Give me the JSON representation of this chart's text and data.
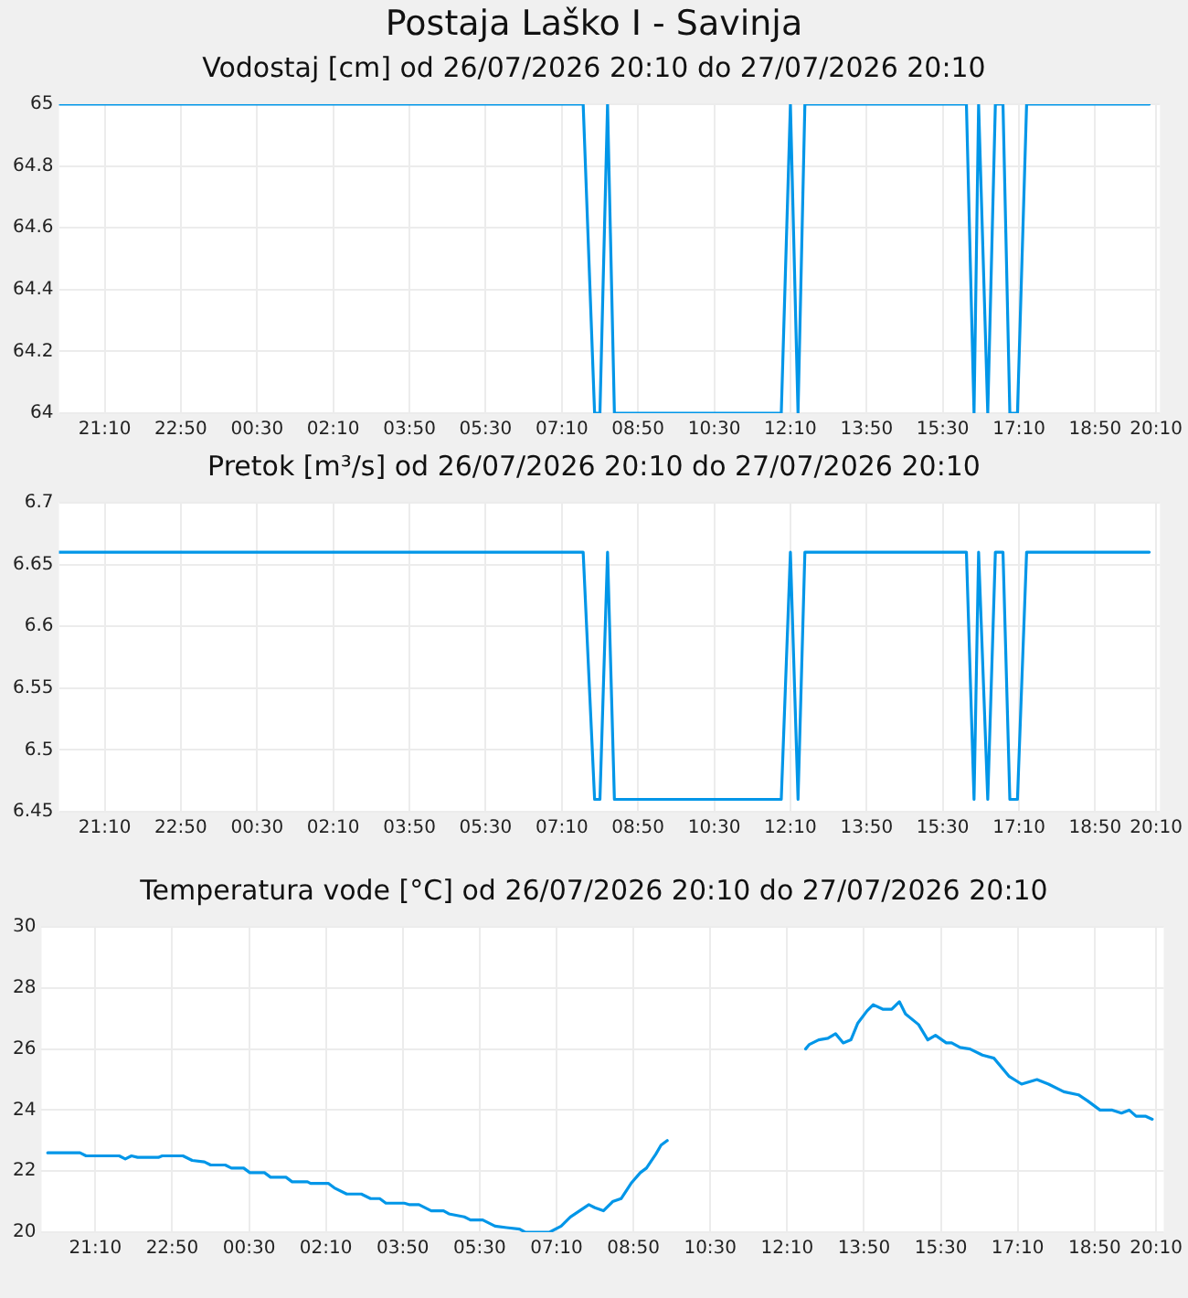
{
  "chart_data": [
    {
      "type": "line",
      "title": "Postaja Laško I - Savinja",
      "subtitle": "Vodostaj [cm] od 26/07/2026 20:10 do 27/07/2026 20:10",
      "grid": true,
      "legend": false,
      "marker": "none",
      "line_style": "solid",
      "xlim": [
        "2026-07-26T20:10",
        "2026-07-27T20:15"
      ],
      "xticks": [
        {
          "value": "2026-07-26T21:10",
          "label": "21:10"
        },
        {
          "value": "2026-07-26T22:50",
          "label": "22:50"
        },
        {
          "value": "2026-07-27T00:30",
          "label": "00:30"
        },
        {
          "value": "2026-07-27T02:10",
          "label": "02:10"
        },
        {
          "value": "2026-07-27T03:50",
          "label": "03:50"
        },
        {
          "value": "2026-07-27T05:30",
          "label": "05:30"
        },
        {
          "value": "2026-07-27T07:10",
          "label": "07:10"
        },
        {
          "value": "2026-07-27T08:50",
          "label": "08:50"
        },
        {
          "value": "2026-07-27T10:30",
          "label": "10:30"
        },
        {
          "value": "2026-07-27T12:10",
          "label": "12:10"
        },
        {
          "value": "2026-07-27T13:50",
          "label": "13:50"
        },
        {
          "value": "2026-07-27T15:30",
          "label": "15:30"
        },
        {
          "value": "2026-07-27T17:10",
          "label": "17:10"
        },
        {
          "value": "2026-07-27T18:50",
          "label": "18:50"
        },
        {
          "value": "2026-07-27T20:10",
          "label": "20:10"
        }
      ],
      "ylim": [
        64,
        65
      ],
      "yticks": [
        64,
        64.2,
        64.4,
        64.6,
        64.8,
        65
      ],
      "x": [
        "2026-07-26T20:10",
        "2026-07-27T07:38",
        "2026-07-27T07:53",
        "2026-07-27T08:00",
        "2026-07-27T08:10",
        "2026-07-27T08:19",
        "2026-07-27T11:58",
        "2026-07-27T12:10",
        "2026-07-27T12:20",
        "2026-07-27T12:29",
        "2026-07-27T16:01",
        "2026-07-27T16:11",
        "2026-07-27T16:17",
        "2026-07-27T16:29",
        "2026-07-27T16:39",
        "2026-07-27T16:49",
        "2026-07-27T16:58",
        "2026-07-27T17:08",
        "2026-07-27T17:20",
        "2026-07-27T20:01"
      ],
      "series": [
        {
          "color": "#0096e8",
          "values": [
            65,
            65,
            64,
            64,
            65,
            64,
            64,
            65,
            64,
            65,
            65,
            64,
            65,
            64,
            65,
            65,
            64,
            64,
            65,
            65
          ]
        }
      ]
    },
    {
      "type": "line",
      "title": "Pretok [m³/s] od 26/07/2026 20:10 do 27/07/2026 20:10",
      "grid": true,
      "legend": false,
      "marker": "none",
      "line_style": "solid",
      "xlim": [
        "2026-07-26T20:10",
        "2026-07-27T20:15"
      ],
      "xticks": [
        {
          "value": "2026-07-26T21:10",
          "label": "21:10"
        },
        {
          "value": "2026-07-26T22:50",
          "label": "22:50"
        },
        {
          "value": "2026-07-27T00:30",
          "label": "00:30"
        },
        {
          "value": "2026-07-27T02:10",
          "label": "02:10"
        },
        {
          "value": "2026-07-27T03:50",
          "label": "03:50"
        },
        {
          "value": "2026-07-27T05:30",
          "label": "05:30"
        },
        {
          "value": "2026-07-27T07:10",
          "label": "07:10"
        },
        {
          "value": "2026-07-27T08:50",
          "label": "08:50"
        },
        {
          "value": "2026-07-27T10:30",
          "label": "10:30"
        },
        {
          "value": "2026-07-27T12:10",
          "label": "12:10"
        },
        {
          "value": "2026-07-27T13:50",
          "label": "13:50"
        },
        {
          "value": "2026-07-27T15:30",
          "label": "15:30"
        },
        {
          "value": "2026-07-27T17:10",
          "label": "17:10"
        },
        {
          "value": "2026-07-27T18:50",
          "label": "18:50"
        },
        {
          "value": "2026-07-27T20:10",
          "label": "20:10"
        }
      ],
      "ylim": [
        6.45,
        6.7
      ],
      "yticks": [
        6.45,
        6.5,
        6.55,
        6.6,
        6.65,
        6.7
      ],
      "x": [
        "2026-07-26T20:10",
        "2026-07-27T07:38",
        "2026-07-27T07:53",
        "2026-07-27T08:00",
        "2026-07-27T08:10",
        "2026-07-27T08:19",
        "2026-07-27T11:58",
        "2026-07-27T12:10",
        "2026-07-27T12:20",
        "2026-07-27T12:29",
        "2026-07-27T16:01",
        "2026-07-27T16:11",
        "2026-07-27T16:17",
        "2026-07-27T16:29",
        "2026-07-27T16:39",
        "2026-07-27T16:49",
        "2026-07-27T16:58",
        "2026-07-27T17:08",
        "2026-07-27T17:20",
        "2026-07-27T20:01"
      ],
      "series": [
        {
          "color": "#0096e8",
          "values": [
            6.66,
            6.66,
            6.46,
            6.46,
            6.66,
            6.46,
            6.46,
            6.66,
            6.46,
            6.66,
            6.66,
            6.46,
            6.66,
            6.46,
            6.66,
            6.66,
            6.46,
            6.46,
            6.66,
            6.66
          ]
        }
      ]
    },
    {
      "type": "line",
      "title": "Temperatura vode [°C] od 26/07/2026 20:10 do 27/07/2026 20:10",
      "grid": true,
      "legend": false,
      "marker": "none",
      "line_style": "solid",
      "xlim": [
        "2026-07-26T20:00",
        "2026-07-27T20:20"
      ],
      "xticks": [
        {
          "value": "2026-07-26T21:10",
          "label": "21:10"
        },
        {
          "value": "2026-07-26T22:50",
          "label": "22:50"
        },
        {
          "value": "2026-07-27T00:30",
          "label": "00:30"
        },
        {
          "value": "2026-07-27T02:10",
          "label": "02:10"
        },
        {
          "value": "2026-07-27T03:50",
          "label": "03:50"
        },
        {
          "value": "2026-07-27T05:30",
          "label": "05:30"
        },
        {
          "value": "2026-07-27T07:10",
          "label": "07:10"
        },
        {
          "value": "2026-07-27T08:50",
          "label": "08:50"
        },
        {
          "value": "2026-07-27T10:30",
          "label": "10:30"
        },
        {
          "value": "2026-07-27T12:10",
          "label": "12:10"
        },
        {
          "value": "2026-07-27T13:50",
          "label": "13:50"
        },
        {
          "value": "2026-07-27T15:30",
          "label": "15:30"
        },
        {
          "value": "2026-07-27T17:10",
          "label": "17:10"
        },
        {
          "value": "2026-07-27T18:50",
          "label": "18:50"
        },
        {
          "value": "2026-07-27T20:10",
          "label": "20:10"
        }
      ],
      "ylim": [
        20,
        30
      ],
      "yticks": [
        20,
        22,
        24,
        26,
        28,
        30
      ],
      "x": [
        "2026-07-26T20:08",
        "2026-07-26T20:50",
        "2026-07-26T20:58",
        "2026-07-26T21:41",
        "2026-07-26T21:49",
        "2026-07-26T21:57",
        "2026-07-26T22:05",
        "2026-07-26T22:32",
        "2026-07-26T22:37",
        "2026-07-26T23:04",
        "2026-07-26T23:16",
        "2026-07-26T23:32",
        "2026-07-26T23:40",
        "2026-07-26T23:59",
        "2026-07-27T00:07",
        "2026-07-27T00:23",
        "2026-07-27T00:31",
        "2026-07-27T00:50",
        "2026-07-27T00:58",
        "2026-07-27T01:18",
        "2026-07-27T01:26",
        "2026-07-27T01:46",
        "2026-07-27T01:50",
        "2026-07-27T02:13",
        "2026-07-27T02:21",
        "2026-07-27T02:37",
        "2026-07-27T02:56",
        "2026-07-27T03:08",
        "2026-07-27T03:20",
        "2026-07-27T03:28",
        "2026-07-27T03:52",
        "2026-07-27T03:59",
        "2026-07-27T04:11",
        "2026-07-27T04:27",
        "2026-07-27T04:43",
        "2026-07-27T04:50",
        "2026-07-27T05:10",
        "2026-07-27T05:18",
        "2026-07-27T05:34",
        "2026-07-27T05:50",
        "2026-07-27T06:05",
        "2026-07-27T06:22",
        "2026-07-27T06:29",
        "2026-07-27T07:01",
        "2026-07-27T07:16",
        "2026-07-27T07:28",
        "2026-07-27T07:40",
        "2026-07-27T07:52",
        "2026-07-27T08:00",
        "2026-07-27T08:11",
        "2026-07-27T08:23",
        "2026-07-27T08:34",
        "2026-07-27T08:47",
        "2026-07-27T08:59",
        "2026-07-27T09:07",
        "2026-07-27T09:19",
        "2026-07-27T09:26",
        "2026-07-27T09:34",
        "2026-07-27T11:00",
        "2026-07-27T12:34",
        "2026-07-27T12:39",
        "2026-07-27T12:51",
        "2026-07-27T13:03",
        "2026-07-27T13:13",
        "2026-07-27T13:23",
        "2026-07-27T13:33",
        "2026-07-27T13:42",
        "2026-07-27T13:54",
        "2026-07-27T14:02",
        "2026-07-27T14:15",
        "2026-07-27T14:26",
        "2026-07-27T14:36",
        "2026-07-27T14:44",
        "2026-07-27T15:01",
        "2026-07-27T15:13",
        "2026-07-27T15:23",
        "2026-07-27T15:37",
        "2026-07-27T15:44",
        "2026-07-27T15:55",
        "2026-07-27T16:08",
        "2026-07-27T16:24",
        "2026-07-27T16:39",
        "2026-07-27T16:59",
        "2026-07-27T17:15",
        "2026-07-27T17:35",
        "2026-07-27T17:50",
        "2026-07-27T18:10",
        "2026-07-27T18:29",
        "2026-07-27T18:41",
        "2026-07-27T18:57",
        "2026-07-27T19:13",
        "2026-07-27T19:25",
        "2026-07-27T19:35",
        "2026-07-27T19:44",
        "2026-07-27T19:56",
        "2026-07-27T20:05"
      ],
      "series": [
        {
          "color": "#0096e8",
          "values": [
            22.6,
            22.6,
            22.5,
            22.5,
            22.4,
            22.5,
            22.45,
            22.45,
            22.5,
            22.5,
            22.35,
            22.3,
            22.2,
            22.2,
            22.1,
            22.1,
            21.95,
            21.95,
            21.8,
            21.8,
            21.65,
            21.65,
            21.6,
            21.6,
            21.45,
            21.25,
            21.25,
            21.1,
            21.1,
            20.95,
            20.95,
            20.9,
            20.9,
            20.7,
            20.7,
            20.6,
            20.5,
            20.4,
            20.4,
            20.2,
            20.15,
            20.1,
            20.0,
            20.0,
            20.2,
            20.5,
            20.7,
            20.9,
            20.8,
            20.7,
            21.0,
            21.1,
            21.6,
            21.95,
            22.1,
            22.55,
            22.85,
            23.0,
            null,
            26.0,
            26.15,
            26.3,
            26.35,
            26.5,
            26.2,
            26.3,
            26.85,
            27.25,
            27.45,
            27.3,
            27.3,
            27.55,
            27.15,
            26.8,
            26.3,
            26.45,
            26.2,
            26.2,
            26.05,
            26.0,
            25.8,
            25.7,
            25.1,
            24.85,
            25.0,
            24.85,
            24.6,
            24.5,
            24.3,
            24.0,
            24.0,
            23.9,
            24.0,
            23.8,
            23.8,
            23.7
          ]
        }
      ]
    }
  ]
}
